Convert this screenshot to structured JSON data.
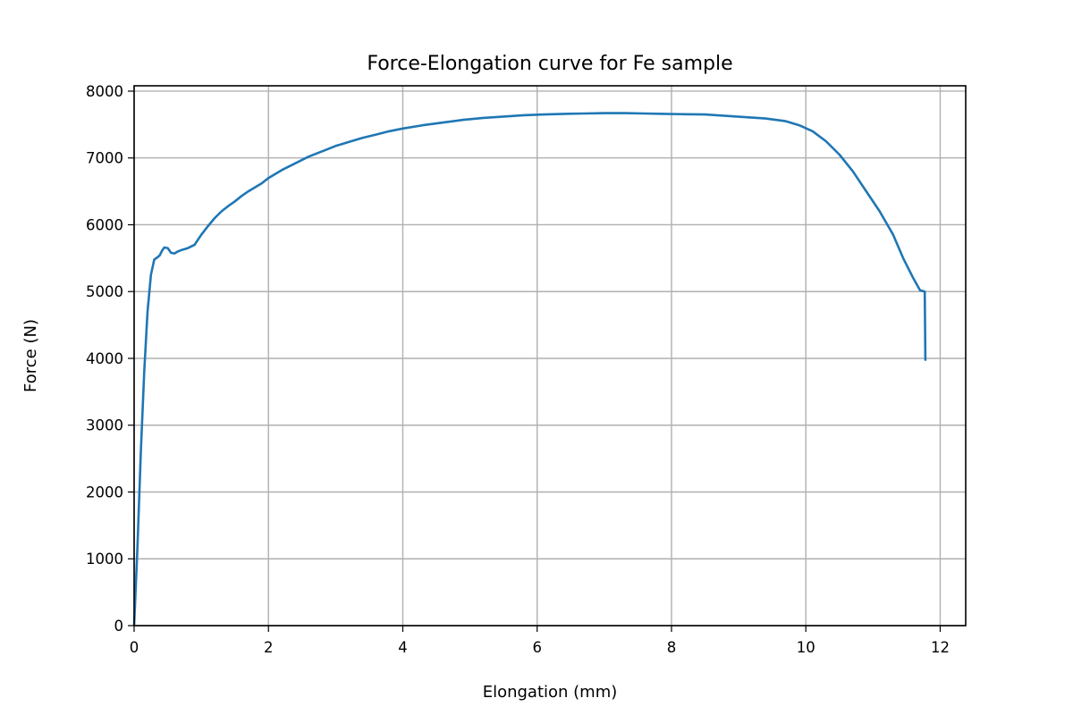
{
  "chart_data": {
    "type": "line",
    "title": "Force-Elongation curve for Fe sample",
    "xlabel": "Elongation (mm)",
    "ylabel": "Force (N)",
    "xlim": [
      0,
      12.38
    ],
    "ylim": [
      0,
      8080
    ],
    "xticks": [
      0,
      2,
      4,
      6,
      8,
      10,
      12
    ],
    "yticks": [
      0,
      1000,
      2000,
      3000,
      4000,
      5000,
      6000,
      7000,
      8000
    ],
    "xtick_labels": [
      "0",
      "2",
      "4",
      "6",
      "8",
      "10",
      "12"
    ],
    "ytick_labels": [
      "0",
      "1000",
      "2000",
      "3000",
      "4000",
      "5000",
      "6000",
      "7000",
      "8000"
    ],
    "grid": true,
    "line_color": "#1f77b4",
    "series": [
      {
        "x": [
          0.0,
          0.05,
          0.1,
          0.15,
          0.2,
          0.25,
          0.3,
          0.33,
          0.38,
          0.42,
          0.45,
          0.5,
          0.55,
          0.6,
          0.65,
          0.7,
          0.8,
          0.9,
          1.0,
          1.1,
          1.2,
          1.3,
          1.4,
          1.5,
          1.6,
          1.7,
          1.8,
          1.9,
          2.0,
          2.2,
          2.4,
          2.6,
          2.8,
          3.0,
          3.2,
          3.4,
          3.6,
          3.8,
          4.0,
          4.3,
          4.6,
          4.9,
          5.2,
          5.5,
          5.8,
          6.1,
          6.4,
          6.7,
          7.0,
          7.3,
          7.6,
          7.9,
          8.2,
          8.5,
          8.8,
          9.1,
          9.4,
          9.7,
          9.9,
          10.1,
          10.3,
          10.5,
          10.7,
          10.9,
          11.1,
          11.3,
          11.45,
          11.6,
          11.7,
          11.77,
          11.78
        ],
        "y": [
          0,
          1200,
          2600,
          3800,
          4700,
          5250,
          5480,
          5500,
          5540,
          5620,
          5660,
          5650,
          5580,
          5570,
          5600,
          5620,
          5650,
          5700,
          5850,
          5980,
          6100,
          6200,
          6280,
          6350,
          6430,
          6500,
          6560,
          6620,
          6700,
          6820,
          6920,
          7020,
          7100,
          7180,
          7240,
          7300,
          7350,
          7400,
          7440,
          7490,
          7530,
          7570,
          7600,
          7620,
          7640,
          7650,
          7660,
          7665,
          7670,
          7670,
          7665,
          7660,
          7655,
          7650,
          7630,
          7610,
          7590,
          7550,
          7490,
          7400,
          7250,
          7050,
          6800,
          6500,
          6200,
          5850,
          5500,
          5200,
          5020,
          5000,
          3980
        ]
      }
    ]
  }
}
